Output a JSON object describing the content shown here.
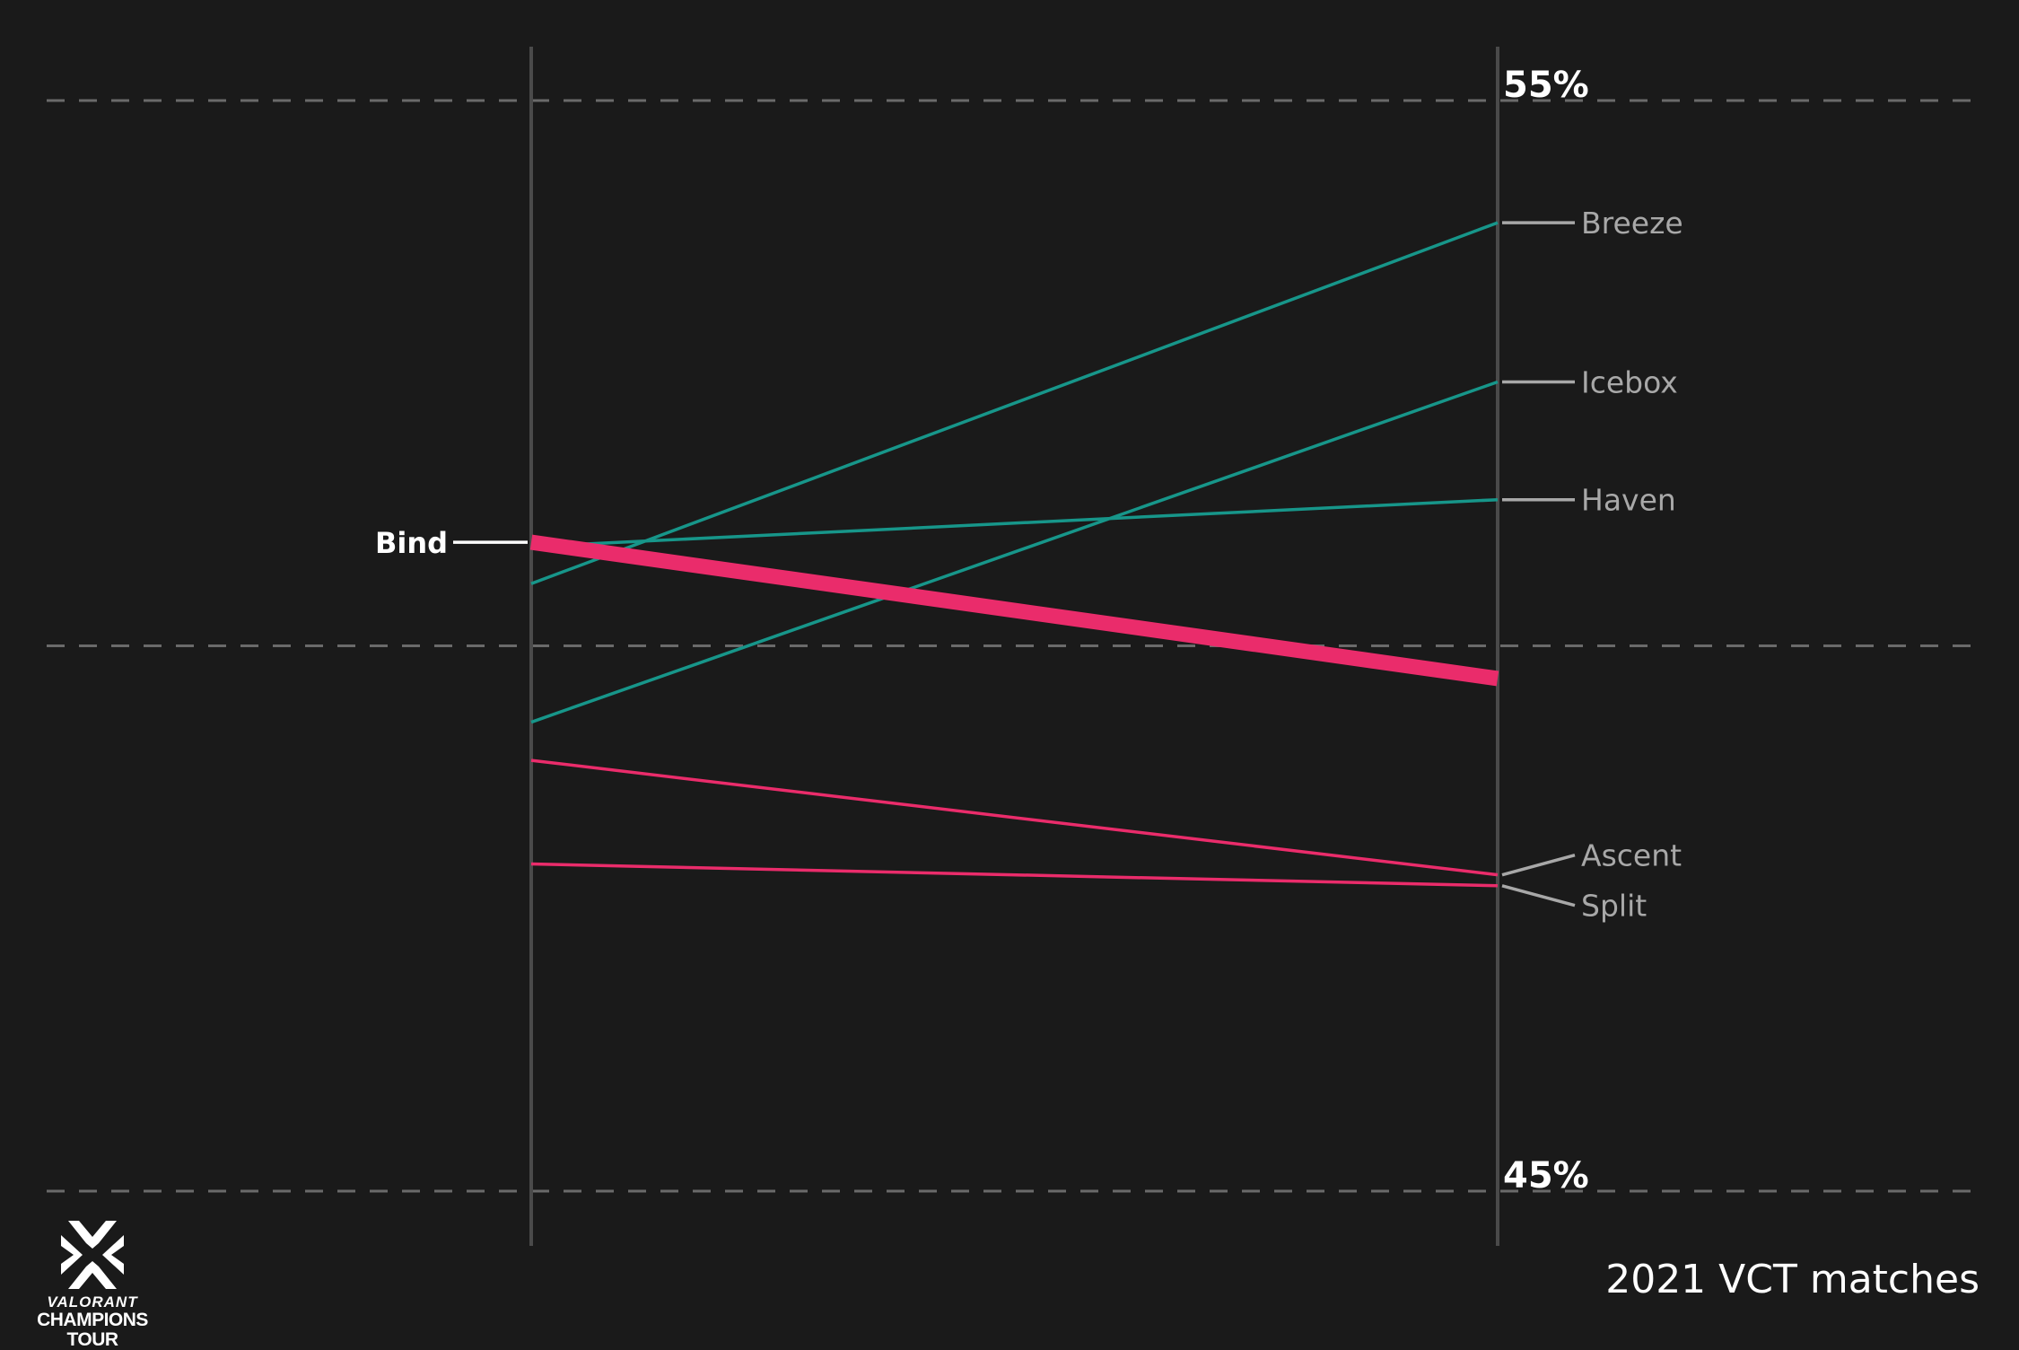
{
  "chart_data": {
    "type": "line",
    "ylim": [
      45,
      55
    ],
    "y_ticks": [
      {
        "value": 55,
        "label": "55%"
      },
      {
        "value": 50,
        "label": ""
      },
      {
        "value": 45,
        "label": "45%"
      }
    ],
    "grid": true,
    "highlight": "Bind",
    "colors": {
      "increase": "#17968a",
      "decrease": "#ea2c6b",
      "background": "#1a1a1a",
      "label": "#a8a8a8",
      "highlight_label": "#ffffff"
    },
    "series": [
      {
        "name": "Bind",
        "values": [
          50.95,
          49.7
        ],
        "trend": "decrease"
      },
      {
        "name": "Breeze",
        "values": [
          50.57,
          53.88
        ],
        "trend": "increase"
      },
      {
        "name": "Icebox",
        "values": [
          49.3,
          52.42
        ],
        "trend": "increase"
      },
      {
        "name": "Haven",
        "values": [
          50.91,
          51.34
        ],
        "trend": "increase"
      },
      {
        "name": "Ascent",
        "values": [
          48.95,
          47.9
        ],
        "trend": "decrease"
      },
      {
        "name": "Split",
        "values": [
          48.0,
          47.8
        ],
        "trend": "decrease"
      }
    ]
  },
  "caption": "2021 VCT matches",
  "logo": {
    "line1": "VALORANT",
    "line2": "CHAMPIONS TOUR",
    "icon": "vct-logo-icon"
  }
}
